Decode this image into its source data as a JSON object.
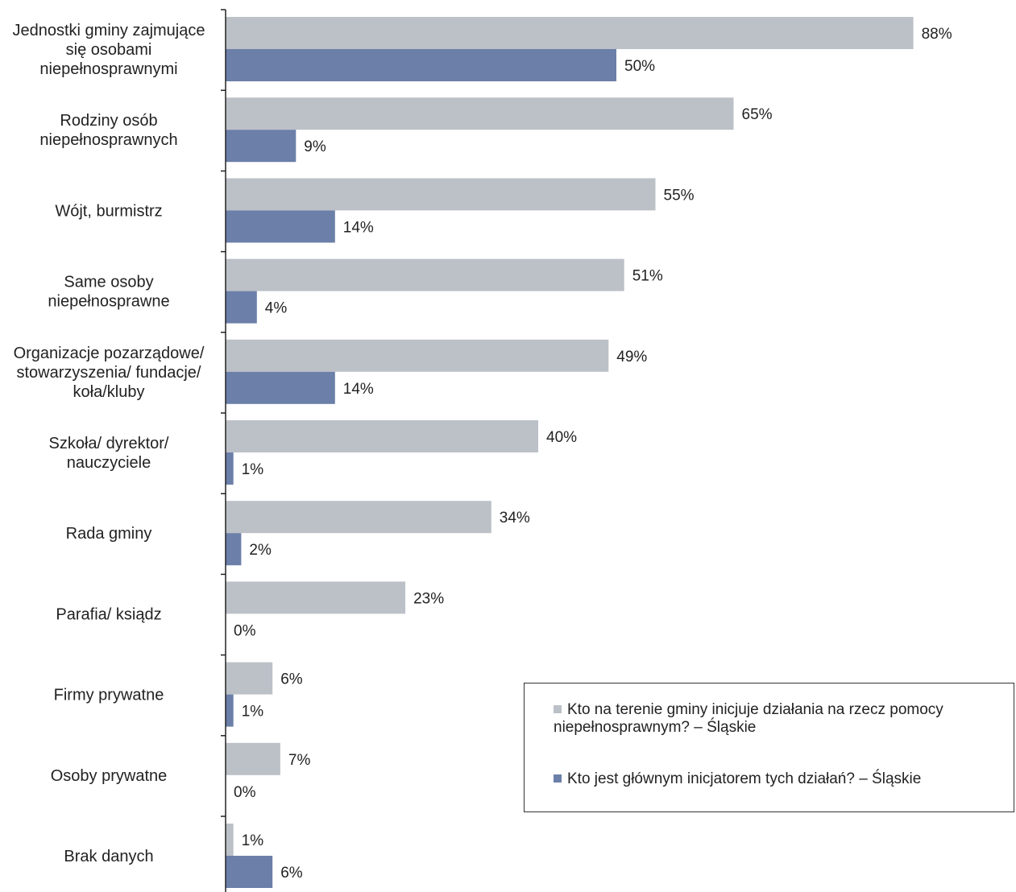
{
  "chart_data": {
    "type": "bar",
    "orientation": "horizontal",
    "categories": [
      "Jednostki gminy zajmujące się osobami niepełnosprawnymi",
      "Rodziny osób niepełnosprawnych",
      "Wójt, burmistrz",
      "Same osoby niepełnosprawne",
      "Organizacje pozarządowe/ stowarzyszenia/ fundacje/ koła/kluby",
      "Szkoła/ dyrektor/ nauczyciele",
      "Rada gminy",
      "Parafia/ ksiądz",
      "Firmy prywatne",
      "Osoby prywatne",
      "Brak danych"
    ],
    "category_lines": [
      [
        "Jednostki gminy zajmujące",
        "się osobami",
        "niepełnosprawnymi"
      ],
      [
        "Rodziny osób",
        "niepełnosprawnych"
      ],
      [
        "Wójt, burmistrz"
      ],
      [
        "Same osoby",
        "niepełnosprawne"
      ],
      [
        "Organizacje pozarządowe/",
        "stowarzyszenia/ fundacje/",
        "koła/kluby"
      ],
      [
        "Szkoła/ dyrektor/",
        "nauczyciele"
      ],
      [
        "Rada gminy"
      ],
      [
        "Parafia/ ksiądz"
      ],
      [
        "Firmy prywatne"
      ],
      [
        "Osoby prywatne"
      ],
      [
        "Brak danych"
      ]
    ],
    "series": [
      {
        "name": "Kto na terenie gminy inicjuje działania na rzecz pomocy niepełnosprawnym? – Śląskie",
        "color": "#bcc0c7",
        "values": [
          88,
          65,
          55,
          51,
          49,
          40,
          34,
          23,
          6,
          7,
          1
        ]
      },
      {
        "name": "Kto jest głównym inicjatorem tych działań? – Śląskie",
        "color": "#6b7fa8",
        "values": [
          50,
          9,
          14,
          4,
          14,
          1,
          2,
          0,
          1,
          0,
          6
        ]
      }
    ],
    "value_suffix": "%",
    "xlim": [
      0,
      100
    ],
    "grid": false,
    "legend_position": "bottom-right"
  }
}
